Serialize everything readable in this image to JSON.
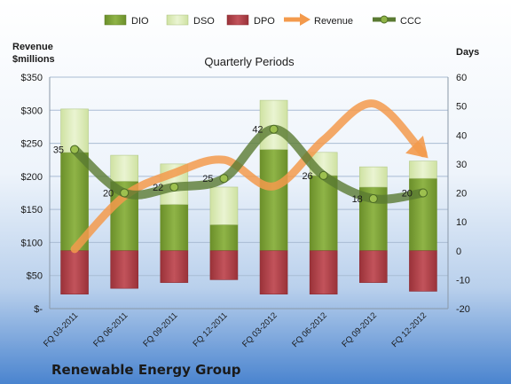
{
  "chart_data": {
    "type": "bar",
    "title": "Quarterly Periods",
    "company": "Renewable Energy Group",
    "left_axis_label": [
      "Revenue",
      "$millions"
    ],
    "right_axis_label": "Days",
    "categories": [
      "FQ 03-2011",
      "FQ 06-2011",
      "FQ 09-2011",
      "FQ 12-2011",
      "FQ 03-2012",
      "FQ 06-2012",
      "FQ 09-2012",
      "FQ 12-2012"
    ],
    "left_ylim": [
      0,
      350
    ],
    "left_ticks": [
      0,
      50,
      100,
      150,
      200,
      250,
      300,
      350
    ],
    "left_tick_labels": [
      "$-",
      "$50",
      "$100",
      "$150",
      "$200",
      "$250",
      "$300",
      "$350"
    ],
    "right_ylim": [
      -20,
      60
    ],
    "right_ticks": [
      -20,
      -10,
      0,
      10,
      20,
      30,
      40,
      50,
      60
    ],
    "legend_position": "top",
    "series": [
      {
        "name": "DIO",
        "axis": "right",
        "kind": "stacked-bar",
        "color": "#7fa336",
        "values": [
          34,
          24,
          16,
          9,
          35,
          26,
          22,
          25
        ]
      },
      {
        "name": "DSO",
        "axis": "right",
        "kind": "stacked-bar",
        "color": "#dcebb8",
        "values": [
          15,
          9,
          14,
          13,
          17,
          8,
          7,
          6
        ]
      },
      {
        "name": "DPO",
        "axis": "right",
        "kind": "negative-bar",
        "color": "#b5454d",
        "values": [
          -15,
          -13,
          -11,
          -10,
          -15,
          -15,
          -11,
          -14
        ]
      },
      {
        "name": "Revenue",
        "axis": "left",
        "kind": "line-arrow",
        "color": "#f39a4c",
        "values": [
          90,
          170,
          205,
          225,
          185,
          255,
          310,
          235
        ]
      },
      {
        "name": "CCC",
        "axis": "right",
        "kind": "line-markers",
        "color": "#5a7a32",
        "values": [
          35,
          20,
          22,
          25,
          42,
          26,
          18,
          20
        ],
        "labels": [
          "35",
          "20",
          "22",
          "25",
          "42",
          "26",
          "18",
          "20"
        ]
      }
    ]
  },
  "colors": {
    "background_top": "#ffffff",
    "background_bottom": "#3a78c8",
    "grid": "#9cb3cf"
  }
}
